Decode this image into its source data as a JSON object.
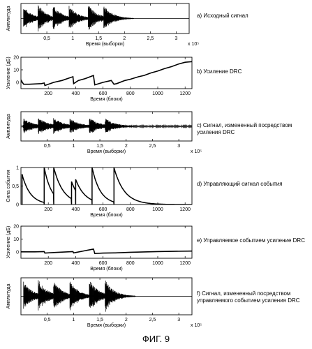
{
  "figure_label": "ФИГ. 9",
  "chart_data": [
    {
      "id": "a",
      "type": "line",
      "caption": "a) Исходный сигнал",
      "xlabel": "Время (выборки)",
      "ylabel": "Амплитуда",
      "x_exponent_label": "x 10⁵",
      "xlim": [
        0,
        3.25
      ],
      "ylim": [
        -1,
        1
      ],
      "xticks": [
        0.5,
        1,
        1.5,
        2,
        2.5,
        3
      ],
      "xtick_labels": [
        "0,5",
        "1",
        "1,5",
        "2",
        "2,5",
        "3"
      ],
      "bursts": [
        {
          "start": 0.05,
          "amp": 0.8,
          "decay": 0.17
        },
        {
          "start": 0.33,
          "amp": 0.95,
          "decay": 0.17
        },
        {
          "start": 0.62,
          "amp": 0.9,
          "decay": 0.17
        },
        {
          "start": 0.93,
          "amp": 0.85,
          "decay": 0.17
        },
        {
          "start": 1.3,
          "amp": 0.95,
          "decay": 0.17
        },
        {
          "start": 1.6,
          "amp": 0.9,
          "decay": 0.17
        }
      ]
    },
    {
      "id": "b",
      "type": "line",
      "caption": "b) Усиление DRC",
      "xlabel": "Время (блоки)",
      "ylabel": "Усиление (дБ)",
      "xlim": [
        0,
        1250
      ],
      "ylim": [
        -5,
        20
      ],
      "xticks": [
        200,
        400,
        600,
        800,
        1000,
        1200
      ],
      "yticks": [
        0,
        10,
        20
      ],
      "x": [
        0,
        10,
        20,
        60,
        150,
        170,
        175,
        240,
        300,
        380,
        385,
        420,
        470,
        530,
        540,
        600,
        660,
        680,
        700,
        760,
        800,
        860,
        900,
        950,
        1000,
        1050,
        1100,
        1150,
        1200,
        1250
      ],
      "y": [
        2,
        0,
        -1.5,
        -1.5,
        -1,
        -0.5,
        -2.5,
        0,
        1.5,
        4.5,
        -1,
        1.5,
        3,
        5.5,
        -2,
        0,
        1.5,
        -1.5,
        -1,
        1.5,
        2.5,
        4.5,
        5.5,
        7.5,
        9,
        11,
        12.5,
        14.5,
        16,
        16.5
      ]
    },
    {
      "id": "c",
      "type": "line",
      "caption": "c) Сигнал, измененный посредством усиления DRC",
      "xlabel": "Время (выборки)",
      "ylabel": "Амплитуда",
      "x_exponent_label": "x 10⁵",
      "xlim": [
        0,
        3.25
      ],
      "ylim": [
        -1,
        1
      ],
      "xticks": [
        0.5,
        1,
        1.5,
        2,
        2.5,
        3
      ],
      "xtick_labels": [
        "0,5",
        "1",
        "1,5",
        "2",
        "2,5",
        "3"
      ],
      "bursts": [
        {
          "start": 0.05,
          "amp": 0.55,
          "decay": 0.2
        },
        {
          "start": 0.33,
          "amp": 0.6,
          "decay": 0.2
        },
        {
          "start": 0.62,
          "amp": 0.6,
          "decay": 0.2
        },
        {
          "start": 0.93,
          "amp": 0.55,
          "decay": 0.2
        },
        {
          "start": 1.3,
          "amp": 0.6,
          "decay": 0.2
        },
        {
          "start": 1.6,
          "amp": 0.55,
          "decay": 0.2
        }
      ],
      "noise_floor": 0.12
    },
    {
      "id": "d",
      "type": "line",
      "caption": "d) Управляющий сигнал события",
      "xlabel": "Время (блоки)",
      "ylabel": "Сила события",
      "xlim": [
        0,
        1250
      ],
      "ylim": [
        0,
        1
      ],
      "xticks": [
        200,
        400,
        600,
        800,
        1000,
        1200
      ],
      "yticks": [
        0,
        0.5,
        1
      ],
      "xtick_labels": [
        "200",
        "400",
        "600",
        "800",
        "1000",
        "1200"
      ],
      "ytick_labels": [
        "0",
        "0,5",
        "1"
      ],
      "events": [
        {
          "start": 8,
          "amp": 0.82,
          "tau": 60,
          "end": 170
        },
        {
          "start": 170,
          "amp": 1.0,
          "tau": 55,
          "end": 240
        },
        {
          "start": 240,
          "amp": 1.0,
          "tau": 70,
          "end": 370
        },
        {
          "start": 370,
          "amp": 0.62,
          "tau": 60,
          "end": 400
        },
        {
          "start": 400,
          "amp": 0.68,
          "tau": 70,
          "end": 520
        },
        {
          "start": 520,
          "amp": 1.0,
          "tau": 60,
          "end": 680
        },
        {
          "start": 680,
          "amp": 1.0,
          "tau": 75,
          "end": 1250
        }
      ]
    },
    {
      "id": "e",
      "type": "line",
      "caption": "e) Управляемое событием усиление DRC",
      "xlabel": "Время (блоки)",
      "ylabel": "Усиление (дБ)",
      "xlim": [
        0,
        1250
      ],
      "ylim": [
        -5,
        20
      ],
      "xticks": [
        200,
        400,
        600,
        800,
        1000,
        1200
      ],
      "yticks": [
        0,
        10,
        20
      ],
      "x": [
        0,
        100,
        170,
        175,
        250,
        380,
        385,
        450,
        530,
        540,
        600,
        680,
        690,
        800,
        1000,
        1250
      ],
      "y": [
        0,
        0,
        0.2,
        -1,
        -0.5,
        0.2,
        -0.8,
        0.5,
        2.2,
        -1.3,
        -1,
        -0.8,
        -0.8,
        -0.3,
        0.2,
        0.6
      ]
    },
    {
      "id": "f",
      "type": "line",
      "caption": "f) Сигнал, измененный посредством управляемого событием усиления DRC",
      "xlabel": "Время (выборки)",
      "ylabel": "Амплитуда",
      "x_exponent_label": "x 10⁵",
      "xlim": [
        0,
        3.25
      ],
      "ylim": [
        -1,
        1
      ],
      "xticks": [
        0.5,
        1,
        1.5,
        2,
        2.5,
        3
      ],
      "xtick_labels": [
        "0,5",
        "1",
        "1,5",
        "2",
        "2,5",
        "3"
      ],
      "bursts": [
        {
          "start": 0.05,
          "amp": 0.8,
          "decay": 0.17
        },
        {
          "start": 0.33,
          "amp": 0.95,
          "decay": 0.17
        },
        {
          "start": 0.62,
          "amp": 0.9,
          "decay": 0.17
        },
        {
          "start": 0.93,
          "amp": 0.85,
          "decay": 0.17
        },
        {
          "start": 1.3,
          "amp": 0.95,
          "decay": 0.17
        },
        {
          "start": 1.6,
          "amp": 0.9,
          "decay": 0.17
        }
      ]
    }
  ]
}
